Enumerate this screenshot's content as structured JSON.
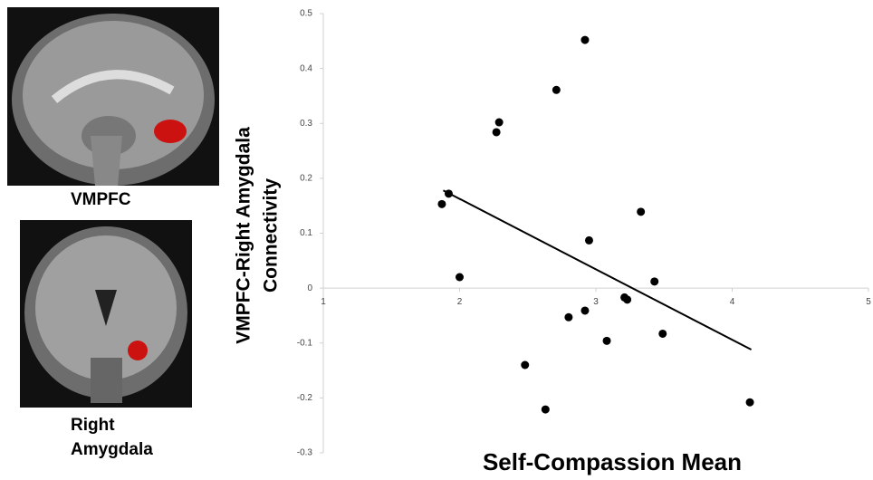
{
  "panels": [
    {
      "label": "VMPFC"
    },
    {
      "label": "Right Amygdala"
    }
  ],
  "chart_data": {
    "type": "scatter",
    "xlabel": "Self-Compassion Mean",
    "ylabel": [
      "VMPFC-Right Amygdala",
      "Connectivity"
    ],
    "x": [
      1.87,
      1.92,
      2.0,
      2.27,
      2.29,
      2.48,
      2.63,
      2.71,
      2.8,
      2.92,
      2.92,
      2.95,
      3.08,
      3.21,
      3.23,
      3.33,
      3.43,
      3.49,
      4.13
    ],
    "y": [
      0.153,
      0.172,
      0.02,
      0.284,
      0.302,
      -0.14,
      -0.221,
      0.361,
      -0.053,
      0.452,
      -0.041,
      0.087,
      -0.096,
      -0.017,
      -0.021,
      0.139,
      0.012,
      -0.083,
      -0.208
    ],
    "color": "#000000",
    "trendline": {
      "x": [
        1.88,
        4.14
      ],
      "y": [
        0.178,
        -0.112
      ]
    },
    "xlim": [
      1,
      5
    ],
    "xticks": [
      1,
      2,
      3,
      4,
      5
    ],
    "ylim": [
      -0.3,
      0.5
    ],
    "yticks": [
      -0.3,
      -0.2,
      -0.1,
      0,
      0.1,
      0.2,
      0.3,
      0.4,
      0.5
    ]
  }
}
